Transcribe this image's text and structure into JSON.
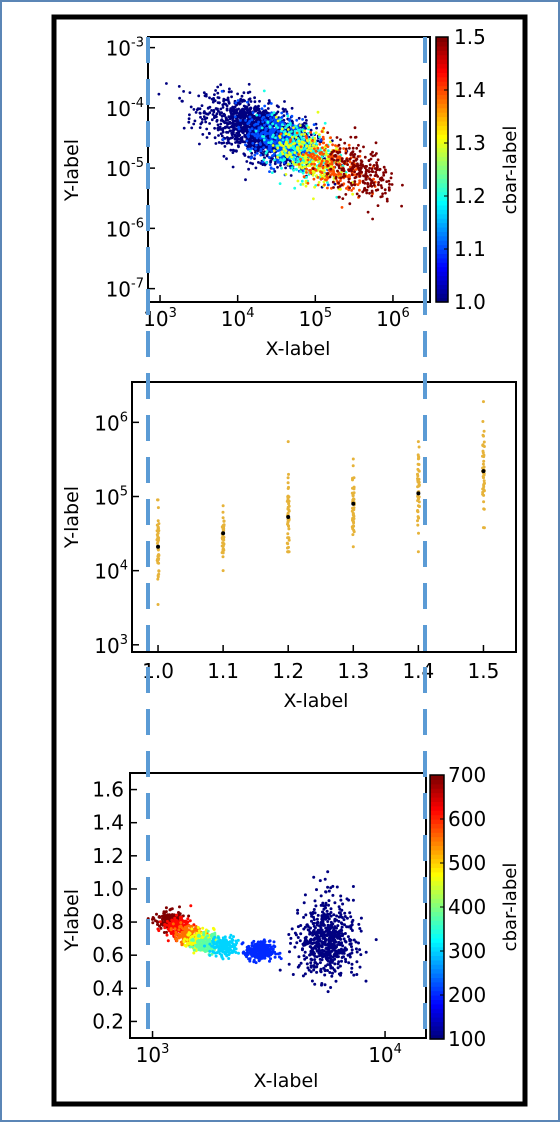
{
  "colors": {
    "outer_border": "#5b86b6",
    "inner_border": "#000000",
    "dash": "#5b9bd5",
    "marker": "#e6b33a",
    "median": "#000000"
  },
  "chart_data": [
    {
      "type": "scatter",
      "xlabel": "X-label",
      "ylabel": "Y-label",
      "xscale": "log",
      "yscale": "log",
      "xlim": [
        700,
        3000000
      ],
      "ylim": [
        6e-08,
        0.0015
      ],
      "x_ticks": [
        "10",
        "10",
        "10",
        "10"
      ],
      "x_tick_exps": [
        "3",
        "4",
        "5",
        "6"
      ],
      "y_ticks": [
        "10",
        "10",
        "10",
        "10",
        "10"
      ],
      "y_tick_exps": [
        "-7",
        "-6",
        "-5",
        "-4",
        "-3"
      ],
      "colorbar": {
        "label": "cbar-label",
        "colormap": "jet",
        "range": [
          1.0,
          1.5
        ],
        "ticks": [
          "1.0",
          "1.1",
          "1.2",
          "1.3",
          "1.4",
          "1.5"
        ]
      },
      "series_summary": [
        {
          "color_value": 1.0,
          "x_center": 20000,
          "y_center": 4e-05,
          "n": 1500
        },
        {
          "color_value": 1.1,
          "x_center": 35000,
          "y_center": 3e-05,
          "n": 400
        },
        {
          "color_value": 1.2,
          "x_center": 60000,
          "y_center": 2e-05,
          "n": 300
        },
        {
          "color_value": 1.3,
          "x_center": 90000,
          "y_center": 1.5e-05,
          "n": 250
        },
        {
          "color_value": 1.4,
          "x_center": 160000,
          "y_center": 1.2e-05,
          "n": 200
        },
        {
          "color_value": 1.5,
          "x_center": 400000,
          "y_center": 8e-06,
          "n": 250
        }
      ]
    },
    {
      "type": "scatter",
      "xlabel": "X-label",
      "ylabel": "Y-label",
      "yscale": "log",
      "xlim": [
        0.96,
        1.55
      ],
      "ylim": [
        800,
        3500000
      ],
      "x_ticks": [
        "1.0",
        "1.1",
        "1.2",
        "1.3",
        "1.4",
        "1.5"
      ],
      "y_ticks": [
        "10",
        "10",
        "10",
        "10"
      ],
      "y_tick_exps": [
        "3",
        "4",
        "5",
        "6"
      ],
      "groups": [
        {
          "x": 1.0,
          "median": 21000,
          "low": 3500,
          "high": 90000
        },
        {
          "x": 1.1,
          "median": 32000,
          "low": 10000,
          "high": 75000
        },
        {
          "x": 1.2,
          "median": 53000,
          "low": 18000,
          "high": 550000
        },
        {
          "x": 1.3,
          "median": 80000,
          "low": 21000,
          "high": 320000
        },
        {
          "x": 1.4,
          "median": 110000,
          "low": 18000,
          "high": 550000
        },
        {
          "x": 1.5,
          "median": 220000,
          "low": 38000,
          "high": 1900000
        }
      ]
    },
    {
      "type": "scatter",
      "xlabel": "X-label",
      "ylabel": "Y-label",
      "xscale": "log",
      "xlim": [
        800,
        15000
      ],
      "ylim": [
        0.1,
        1.7
      ],
      "x_ticks": [
        "10",
        "10"
      ],
      "x_tick_exps": [
        "3",
        "4"
      ],
      "y_ticks": [
        "0.2",
        "0.4",
        "0.6",
        "0.8",
        "1.0",
        "1.2",
        "1.4",
        "1.6"
      ],
      "colorbar": {
        "label": "cbar-label",
        "colormap": "jet",
        "range": [
          100,
          700
        ],
        "ticks": [
          "100",
          "200",
          "300",
          "400",
          "500",
          "600",
          "700"
        ]
      },
      "clusters": [
        {
          "color_value": 700,
          "x_center": 1180,
          "y_center": 0.81
        },
        {
          "color_value": 620,
          "x_center": 1280,
          "y_center": 0.77
        },
        {
          "color_value": 560,
          "x_center": 1420,
          "y_center": 0.72
        },
        {
          "color_value": 470,
          "x_center": 1600,
          "y_center": 0.69
        },
        {
          "color_value": 380,
          "x_center": 1750,
          "y_center": 0.67
        },
        {
          "color_value": 300,
          "x_center": 2050,
          "y_center": 0.65
        },
        {
          "color_value": 200,
          "x_center": 2900,
          "y_center": 0.62
        },
        {
          "color_value": 100,
          "x_center": 5600,
          "y_center": 0.66
        }
      ]
    }
  ]
}
